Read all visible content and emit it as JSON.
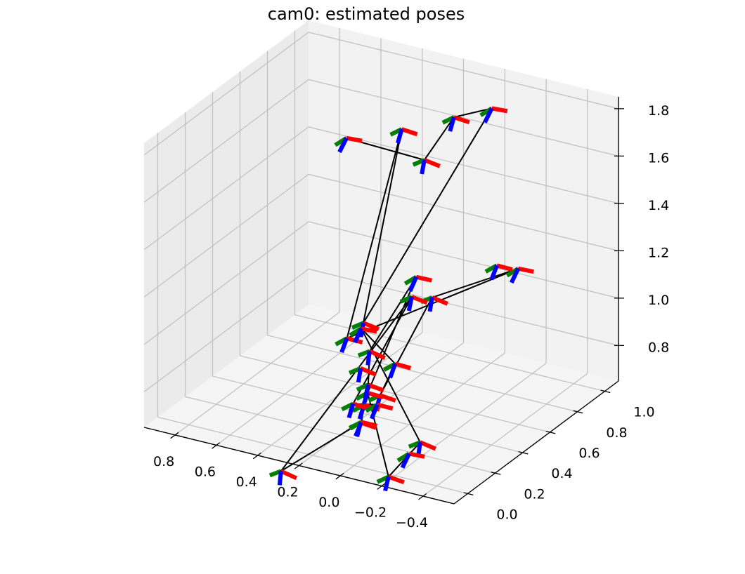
{
  "chart_data": {
    "type": "3d-line-poses",
    "title": "cam0: estimated poses",
    "xlabel": "",
    "ylabel": "",
    "zlabel": "",
    "xlim": [
      -0.55,
      0.95
    ],
    "ylim": [
      -0.1,
      1.1
    ],
    "zlim": [
      0.65,
      1.85
    ],
    "x_ticks": [
      "−0.4",
      "−0.2",
      "0.0",
      "0.2",
      "0.4",
      "0.6",
      "0.8"
    ],
    "y_ticks": [
      "0.0",
      "0.2",
      "0.4",
      "0.6",
      "0.8",
      "1.0"
    ],
    "z_ticks": [
      "0.8",
      "1.0",
      "1.2",
      "1.4",
      "1.6",
      "1.8"
    ],
    "grid": true,
    "colors": {
      "trajectory": "#000000",
      "axis_x": "#ff0000",
      "axis_y": "#008000",
      "axis_z": "#0000ff",
      "pane_back": "#f2f2f2",
      "pane_side": "#ebebeb",
      "pane_floor": "#f5f5f5",
      "grid": "#bfbfbf"
    },
    "series": [
      {
        "points": [
          [
            -0.03,
            0.96,
            1.75
          ],
          [
            0.28,
            0.49,
            0.98
          ],
          [
            0.3,
            0.8,
            1.66
          ],
          [
            0.3,
            0.4,
            0.95
          ],
          [
            -0.33,
            0.7,
            1.25
          ],
          [
            0.12,
            0.75,
            1.01
          ],
          [
            0.04,
            0.25,
            0.83
          ],
          [
            0.0,
            0.3,
            0.95
          ],
          [
            0.33,
            0.55,
            0.92
          ],
          [
            -0.3,
            0.03,
            0.8
          ],
          [
            -0.18,
            -0.02,
            0.65
          ],
          [
            0.12,
            0.28,
            0.81
          ],
          [
            0.15,
            0.68,
            1.12
          ],
          [
            0.27,
            0.52,
            0.85
          ],
          [
            0.25,
            0.48,
            0.73
          ],
          [
            0.27,
            0.48,
            0.64
          ],
          [
            0.15,
            0.28,
            0.68
          ],
          [
            0.4,
            0.07,
            0.51
          ],
          [
            -0.08,
            0.3,
            1.25
          ],
          [
            0.27,
            0.4,
            0.68
          ],
          [
            0.12,
            0.35,
            0.73
          ]
        ]
      },
      {
        "points": [
          [
            0.7,
            1.0,
            1.45
          ],
          [
            0.31,
            0.98,
            1.45
          ],
          [
            0.18,
            1.0,
            1.65
          ],
          [
            -0.03,
            0.96,
            1.75
          ]
        ]
      }
    ],
    "poses": [
      [
        -0.03,
        0.96,
        1.75
      ],
      [
        0.28,
        0.49,
        0.98
      ],
      [
        0.3,
        0.8,
        1.66
      ],
      [
        0.3,
        0.4,
        0.95
      ],
      [
        -0.33,
        0.7,
        1.25
      ],
      [
        0.12,
        0.75,
        1.01
      ],
      [
        0.04,
        0.25,
        0.83
      ],
      [
        0.0,
        0.3,
        0.95
      ],
      [
        0.33,
        0.55,
        0.92
      ],
      [
        -0.3,
        0.03,
        0.8
      ],
      [
        -0.18,
        -0.02,
        0.65
      ],
      [
        0.12,
        0.28,
        0.81
      ],
      [
        0.15,
        0.68,
        1.12
      ],
      [
        0.27,
        0.52,
        0.85
      ],
      [
        0.25,
        0.48,
        0.73
      ],
      [
        0.27,
        0.48,
        0.64
      ],
      [
        0.15,
        0.28,
        0.68
      ],
      [
        0.4,
        0.07,
        0.51
      ],
      [
        -0.08,
        0.3,
        1.25
      ],
      [
        0.27,
        0.4,
        0.68
      ],
      [
        0.12,
        0.35,
        0.73
      ],
      [
        0.7,
        1.0,
        1.45
      ],
      [
        0.31,
        0.98,
        1.45
      ],
      [
        0.18,
        1.0,
        1.65
      ],
      [
        -0.26,
        0.65,
        1.27
      ],
      [
        -0.2,
        0.1,
        0.7
      ],
      [
        0.3,
        0.5,
        0.78
      ],
      [
        0.22,
        0.38,
        0.62
      ]
    ]
  }
}
